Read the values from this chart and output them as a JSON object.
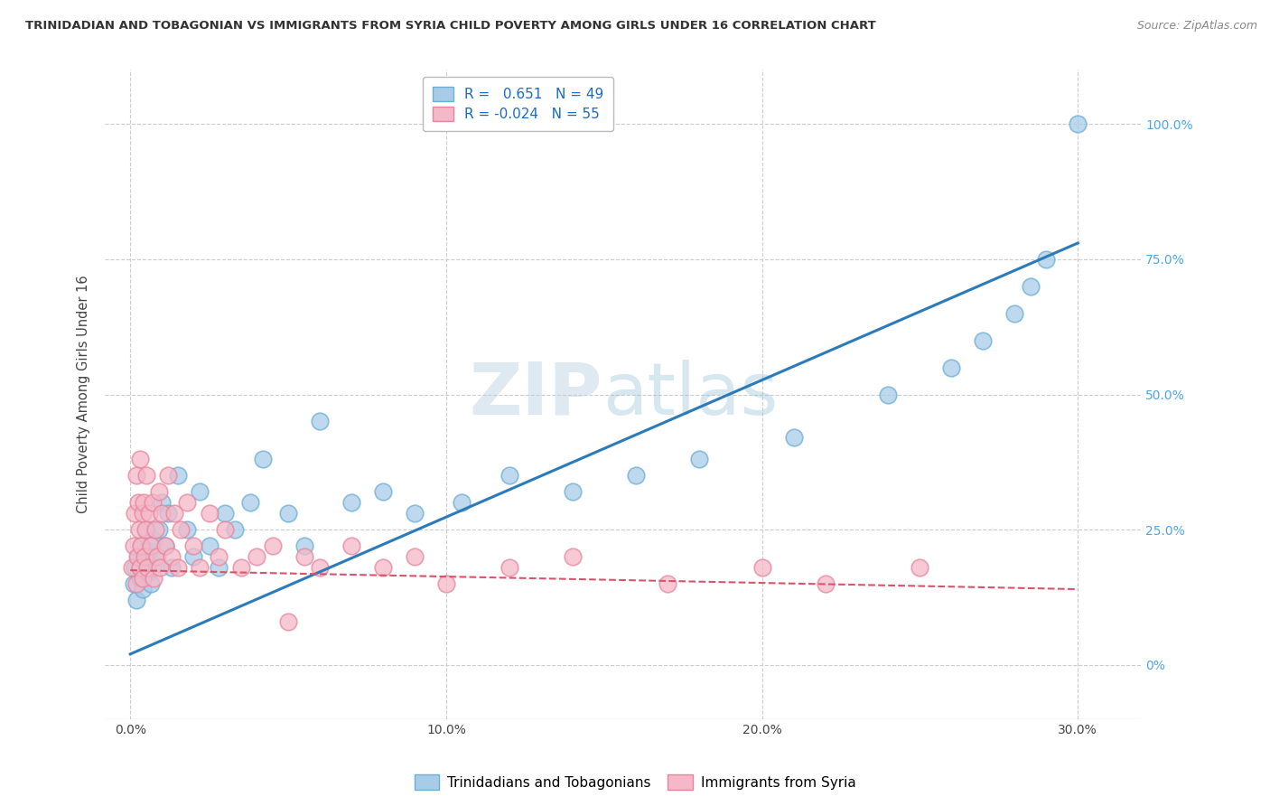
{
  "title": "TRINIDADIAN AND TOBAGONIAN VS IMMIGRANTS FROM SYRIA CHILD POVERTY AMONG GIRLS UNDER 16 CORRELATION CHART",
  "source": "Source: ZipAtlas.com",
  "ylabel": "Child Poverty Among Girls Under 16",
  "watermark": "ZIPAtlas",
  "series1_label": "Trinidadians and Tobagonians",
  "series1_R": "0.651",
  "series1_N": "49",
  "series1_color": "#a8cce8",
  "series1_edge": "#6aaed6",
  "series2_label": "Immigrants from Syria",
  "series2_R": "-0.024",
  "series2_N": "55",
  "series2_color": "#f4b8c8",
  "series2_edge": "#e8849c",
  "trend1_color": "#2b7bba",
  "trend2_color": "#d9536a",
  "background_color": "#ffffff",
  "grid_color": "#cccccc",
  "tick_color": "#4da6e8",
  "legend_color": "#1a6bc4",
  "ytick_labels": [
    "0%",
    "25.0%",
    "50.0%",
    "75.0%",
    "100.0%"
  ],
  "ytick_vals": [
    0,
    25,
    50,
    75,
    100
  ],
  "xtick_labels": [
    "0.0%",
    "10.0%",
    "20.0%",
    "30.0%"
  ],
  "xtick_vals": [
    0,
    10,
    20,
    30
  ],
  "xlim": [
    -0.8,
    32.0
  ],
  "ylim": [
    -10.0,
    110.0
  ],
  "trend1_x": [
    0.0,
    30.0
  ],
  "trend1_y": [
    2.0,
    78.0
  ],
  "trend2_x": [
    0.0,
    30.0
  ],
  "trend2_y": [
    17.5,
    14.0
  ],
  "series1_x": [
    0.1,
    0.15,
    0.2,
    0.25,
    0.3,
    0.35,
    0.4,
    0.45,
    0.5,
    0.55,
    0.6,
    0.65,
    0.7,
    0.75,
    0.8,
    0.9,
    1.0,
    1.1,
    1.2,
    1.3,
    1.5,
    1.8,
    2.0,
    2.2,
    2.5,
    2.8,
    3.0,
    3.3,
    3.8,
    4.2,
    5.0,
    5.5,
    6.0,
    7.0,
    8.0,
    9.0,
    10.5,
    12.0,
    14.0,
    16.0,
    18.0,
    21.0,
    24.0,
    26.0,
    27.0,
    28.0,
    28.5,
    29.0,
    30.0
  ],
  "series1_y": [
    15.0,
    18.0,
    12.0,
    20.0,
    16.0,
    22.0,
    14.0,
    19.0,
    25.0,
    17.0,
    21.0,
    15.0,
    18.0,
    23.0,
    20.0,
    25.0,
    30.0,
    22.0,
    28.0,
    18.0,
    35.0,
    25.0,
    20.0,
    32.0,
    22.0,
    18.0,
    28.0,
    25.0,
    30.0,
    38.0,
    28.0,
    22.0,
    45.0,
    30.0,
    32.0,
    28.0,
    30.0,
    35.0,
    32.0,
    35.0,
    38.0,
    42.0,
    50.0,
    55.0,
    60.0,
    65.0,
    70.0,
    75.0,
    100.0
  ],
  "series2_x": [
    0.05,
    0.1,
    0.15,
    0.18,
    0.2,
    0.22,
    0.25,
    0.28,
    0.3,
    0.32,
    0.35,
    0.38,
    0.4,
    0.42,
    0.45,
    0.48,
    0.5,
    0.55,
    0.6,
    0.65,
    0.7,
    0.75,
    0.8,
    0.85,
    0.9,
    0.95,
    1.0,
    1.1,
    1.2,
    1.3,
    1.4,
    1.5,
    1.6,
    1.8,
    2.0,
    2.2,
    2.5,
    2.8,
    3.0,
    3.5,
    4.0,
    4.5,
    5.0,
    5.5,
    6.0,
    7.0,
    8.0,
    9.0,
    10.0,
    12.0,
    14.0,
    17.0,
    20.0,
    22.0,
    25.0
  ],
  "series2_y": [
    18.0,
    22.0,
    28.0,
    15.0,
    35.0,
    20.0,
    30.0,
    25.0,
    18.0,
    38.0,
    22.0,
    28.0,
    16.0,
    30.0,
    20.0,
    25.0,
    35.0,
    18.0,
    28.0,
    22.0,
    30.0,
    16.0,
    25.0,
    20.0,
    32.0,
    18.0,
    28.0,
    22.0,
    35.0,
    20.0,
    28.0,
    18.0,
    25.0,
    30.0,
    22.0,
    18.0,
    28.0,
    20.0,
    25.0,
    18.0,
    20.0,
    22.0,
    8.0,
    20.0,
    18.0,
    22.0,
    18.0,
    20.0,
    15.0,
    18.0,
    20.0,
    15.0,
    18.0,
    15.0,
    18.0
  ]
}
